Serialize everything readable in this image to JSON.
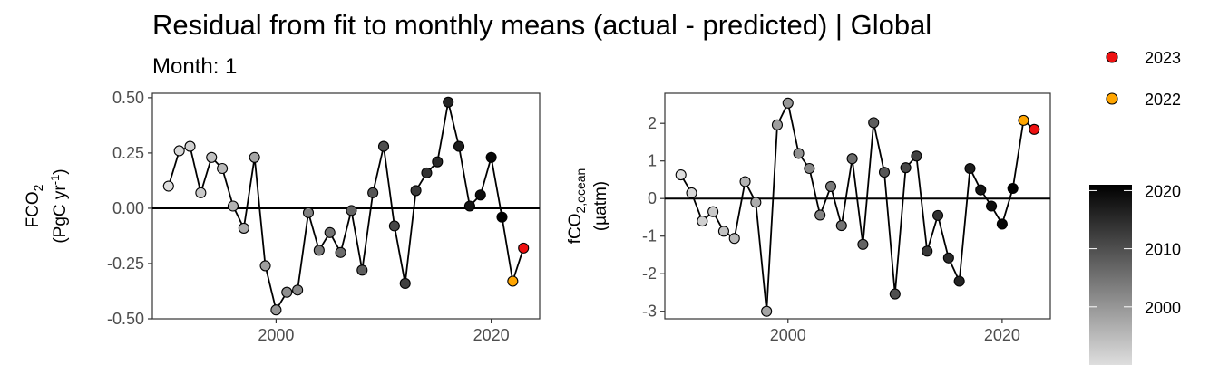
{
  "title": "Residual from fit to monthly means (actual - predicted) | Global",
  "subtitle": "Month: 1",
  "chart_data": [
    {
      "type": "line",
      "panel": "left",
      "ylabel_main": "FCO",
      "ylabel_main_sub": "2",
      "ylabel_units_pre": "(PgC yr",
      "ylabel_units_sup": "-1",
      "ylabel_units_post": ")",
      "xlim": [
        1988.5,
        2024.5
      ],
      "ylim": [
        -0.5,
        0.52
      ],
      "xticks": [
        2000,
        2020
      ],
      "yticks": [
        0.5,
        0.25,
        0.0,
        -0.25,
        -0.5
      ],
      "ytick_labels": [
        "0.50",
        "0.25",
        "0.00",
        "-0.25",
        "-0.50"
      ],
      "zero_line": true,
      "x": [
        1990,
        1991,
        1992,
        1993,
        1994,
        1995,
        1996,
        1997,
        1998,
        1999,
        2000,
        2001,
        2002,
        2003,
        2004,
        2005,
        2006,
        2007,
        2008,
        2009,
        2010,
        2011,
        2012,
        2013,
        2014,
        2015,
        2016,
        2017,
        2018,
        2019,
        2020,
        2021,
        2022,
        2023
      ],
      "y": [
        0.1,
        0.26,
        0.28,
        0.07,
        0.23,
        0.18,
        0.01,
        -0.09,
        0.23,
        -0.26,
        -0.46,
        -0.38,
        -0.37,
        -0.02,
        -0.19,
        -0.11,
        -0.2,
        -0.01,
        -0.28,
        0.07,
        0.28,
        -0.08,
        -0.34,
        0.08,
        0.16,
        0.21,
        0.48,
        0.28,
        0.01,
        0.06,
        0.23,
        -0.04,
        -0.33,
        -0.18
      ]
    },
    {
      "type": "line",
      "panel": "right",
      "ylabel_main": "fCO",
      "ylabel_main_sub": "2,ocean",
      "ylabel_units_pre": "(µatm)",
      "ylabel_units_sup": "",
      "ylabel_units_post": "",
      "xlim": [
        1988.5,
        2024.5
      ],
      "ylim": [
        -3.2,
        2.8
      ],
      "xticks": [
        2000,
        2020
      ],
      "yticks": [
        2,
        1,
        0,
        -1,
        -2,
        -3
      ],
      "ytick_labels": [
        "2",
        "1",
        "0",
        "-1",
        "-2",
        "-3"
      ],
      "zero_line": true,
      "x": [
        1990,
        1991,
        1992,
        1993,
        1994,
        1995,
        1996,
        1997,
        1998,
        1999,
        2000,
        2001,
        2002,
        2003,
        2004,
        2005,
        2006,
        2007,
        2008,
        2009,
        2010,
        2011,
        2012,
        2013,
        2014,
        2015,
        2016,
        2017,
        2018,
        2019,
        2020,
        2021,
        2022,
        2023
      ],
      "y": [
        0.63,
        0.15,
        -0.6,
        -0.35,
        -0.87,
        -1.06,
        0.45,
        -0.1,
        -3.0,
        1.96,
        2.54,
        1.2,
        0.8,
        -0.44,
        0.32,
        -0.72,
        1.06,
        -1.22,
        2.02,
        0.7,
        -2.54,
        0.82,
        1.13,
        -1.4,
        -0.45,
        -1.58,
        -2.2,
        0.8,
        0.23,
        -0.2,
        -0.68,
        0.27,
        2.08,
        1.84
      ]
    }
  ],
  "legend": {
    "highlight": [
      {
        "label": "2023",
        "color": "#ee1111"
      },
      {
        "label": "2022",
        "color": "#ffa500"
      }
    ],
    "colorbar": {
      "labels": [
        "2020",
        "2010",
        "2000"
      ],
      "values": [
        2020,
        2010,
        2000
      ],
      "range": [
        1990,
        2021
      ],
      "color_low": "#dedede",
      "color_high": "#000000"
    }
  }
}
